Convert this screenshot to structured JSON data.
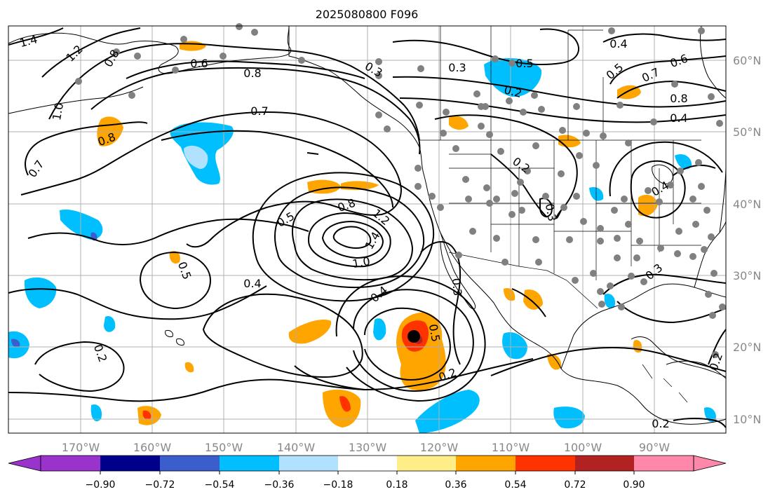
{
  "title": "2025080800 F096",
  "map": {
    "lon_labels": [
      "170°W",
      "160°W",
      "150°W",
      "140°W",
      "130°W",
      "120°W",
      "110°W",
      "100°W",
      "90°W"
    ],
    "lat_labels": [
      "60°N",
      "50°N",
      "40°N",
      "30°N",
      "20°N",
      "10°N"
    ],
    "contour_labels": [
      "1.4",
      "1.2",
      "0.8",
      "1.0",
      "0.7",
      "0.6",
      "0.8",
      "0.7",
      "0.8",
      "0.3",
      "0.3",
      "0.5",
      "0.2",
      "0.4",
      "0.5",
      "0.7",
      "0.6",
      "0.8",
      "0.4",
      "0.2",
      "0.3",
      "0.4",
      "0.8",
      "1.2",
      "1.4",
      "1.0",
      "0.5",
      "0.5",
      "0.4",
      "0.4",
      "0.5",
      "0.2",
      "0.3",
      "0.3",
      "0.2",
      "0.2",
      "0.2"
    ],
    "storm_marker": "black-dot"
  },
  "colorbar": {
    "tick_labels": [
      "−0.90",
      "−0.72",
      "−0.54",
      "−0.36",
      "−0.18",
      "0.18",
      "0.36",
      "0.54",
      "0.72",
      "0.90"
    ],
    "colors": [
      "#9933cc",
      "#00008b",
      "#3a5fcd",
      "#00bfff",
      "#b0e2ff",
      "#ffffff",
      "#ffee88",
      "#ffa500",
      "#ff3300",
      "#b22222",
      "#ff88aa"
    ]
  },
  "colors": {
    "neg_strong": "#00bfff",
    "neg_weak": "#b0e2ff",
    "pos_weak": "#ffee88",
    "pos_mid": "#ffa500",
    "pos_strong": "#ff3300",
    "dark_red": "#b22222",
    "purple": "#9933cc",
    "obs_dot": "#808080"
  }
}
